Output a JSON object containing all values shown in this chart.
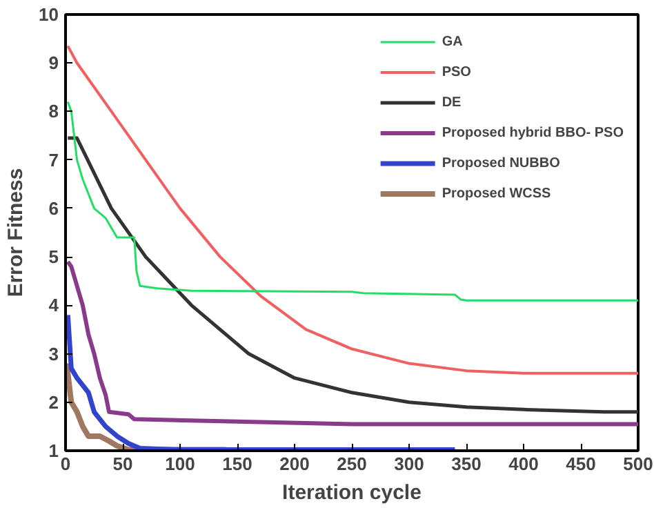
{
  "chart_data": {
    "type": "line",
    "xlabel": "Iteration cycle",
    "ylabel": "Error Fitness",
    "xlim": [
      0,
      500
    ],
    "ylim": [
      1,
      10
    ],
    "xticks": [
      0,
      50,
      100,
      150,
      200,
      250,
      300,
      350,
      400,
      450,
      500
    ],
    "yticks": [
      1,
      2,
      3,
      4,
      5,
      6,
      7,
      8,
      9,
      10
    ],
    "grid": false,
    "legend": "top right",
    "marker": "none",
    "line_style": "solid",
    "series": [
      {
        "name": "GA",
        "color": "#22dd66",
        "x": [
          2,
          5,
          10,
          15,
          25,
          35,
          45,
          60,
          62,
          65,
          80,
          110,
          250,
          260,
          340,
          345,
          350,
          500
        ],
        "values": [
          8.2,
          8.0,
          7.0,
          6.6,
          6.0,
          5.8,
          5.4,
          5.4,
          4.7,
          4.4,
          4.35,
          4.3,
          4.28,
          4.25,
          4.22,
          4.12,
          4.1,
          4.1
        ]
      },
      {
        "name": "PSO",
        "color": "#f06060",
        "x": [
          2,
          10,
          40,
          70,
          100,
          135,
          170,
          210,
          250,
          300,
          350,
          400,
          500
        ],
        "values": [
          9.35,
          9.0,
          8.0,
          7.0,
          6.0,
          5.0,
          4.2,
          3.5,
          3.1,
          2.8,
          2.65,
          2.6,
          2.6
        ]
      },
      {
        "name": "DE",
        "color": "#333333",
        "x": [
          2,
          10,
          40,
          70,
          110,
          160,
          200,
          250,
          300,
          350,
          400,
          470,
          500
        ],
        "values": [
          7.45,
          7.45,
          6.0,
          5.0,
          4.0,
          3.0,
          2.5,
          2.2,
          2.0,
          1.9,
          1.85,
          1.8,
          1.8
        ]
      },
      {
        "name": "Proposed hybrid BBO- PSO",
        "color": "#8a3a8a",
        "x": [
          2,
          5,
          10,
          15,
          20,
          25,
          30,
          35,
          38,
          55,
          60,
          150,
          250,
          500
        ],
        "values": [
          4.9,
          4.8,
          4.4,
          4.0,
          3.4,
          3.0,
          2.5,
          2.15,
          1.8,
          1.75,
          1.65,
          1.6,
          1.55,
          1.55
        ]
      },
      {
        "name": "Proposed NUBBO",
        "color": "#3344cc",
        "x": [
          2,
          5,
          10,
          20,
          25,
          35,
          45,
          55,
          65,
          100,
          340
        ],
        "values": [
          3.8,
          2.7,
          2.5,
          2.2,
          1.8,
          1.5,
          1.3,
          1.15,
          1.05,
          1.02,
          1.02
        ]
      },
      {
        "name": "Proposed WCSS",
        "color": "#a07860",
        "x": [
          1,
          5,
          10,
          15,
          20,
          30,
          38,
          45,
          55,
          140
        ],
        "values": [
          2.8,
          2.0,
          1.8,
          1.5,
          1.3,
          1.3,
          1.2,
          1.1,
          1.02,
          1.02
        ]
      }
    ]
  }
}
